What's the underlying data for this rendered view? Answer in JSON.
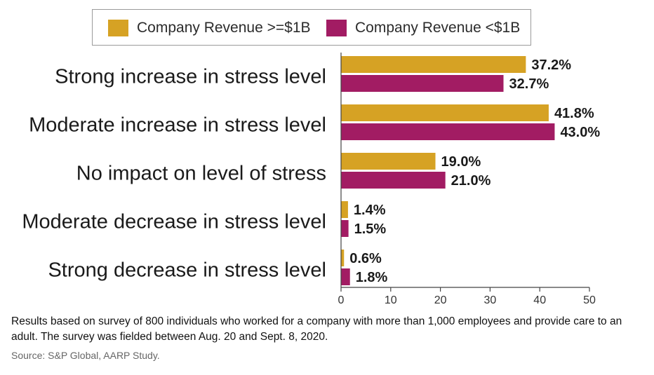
{
  "legend": {
    "items": [
      {
        "label": "Company Revenue >=$1B",
        "color": "#D6A224"
      },
      {
        "label": "Company Revenue <$1B",
        "color": "#A21C63"
      }
    ]
  },
  "chart_data": {
    "type": "bar",
    "orientation": "horizontal",
    "categories": [
      "Strong increase in stress level",
      "Moderate increase in stress level",
      "No impact on level of stress",
      "Moderate decrease in stress level",
      "Strong decrease in stress level"
    ],
    "series": [
      {
        "name": "Company Revenue >=$1B",
        "color": "#D6A224",
        "values": [
          37.2,
          41.8,
          19.0,
          1.4,
          0.6
        ]
      },
      {
        "name": "Company Revenue <$1B",
        "color": "#A21C63",
        "values": [
          32.7,
          43.0,
          21.0,
          1.5,
          1.8
        ]
      }
    ],
    "data_labels": [
      [
        "37.2%",
        "41.8%",
        "19.0%",
        "1.4%",
        "0.6%"
      ],
      [
        "32.7%",
        "43.0%",
        "21.0%",
        "1.5%",
        "1.8%"
      ]
    ],
    "xlim": [
      0,
      50
    ],
    "xticks": [
      0,
      10,
      20,
      30,
      40,
      50
    ],
    "title": "",
    "xlabel": "",
    "ylabel": "",
    "grid": false,
    "legend_position": "top"
  },
  "footnote": {
    "note": "Results based on survey of 800 individuals who worked for a company with more than 1,000 employees and provide care to an adult. The survey was fielded between Aug. 20 and Sept. 8, 2020.",
    "source": "Source: S&P Global, AARP Study."
  }
}
